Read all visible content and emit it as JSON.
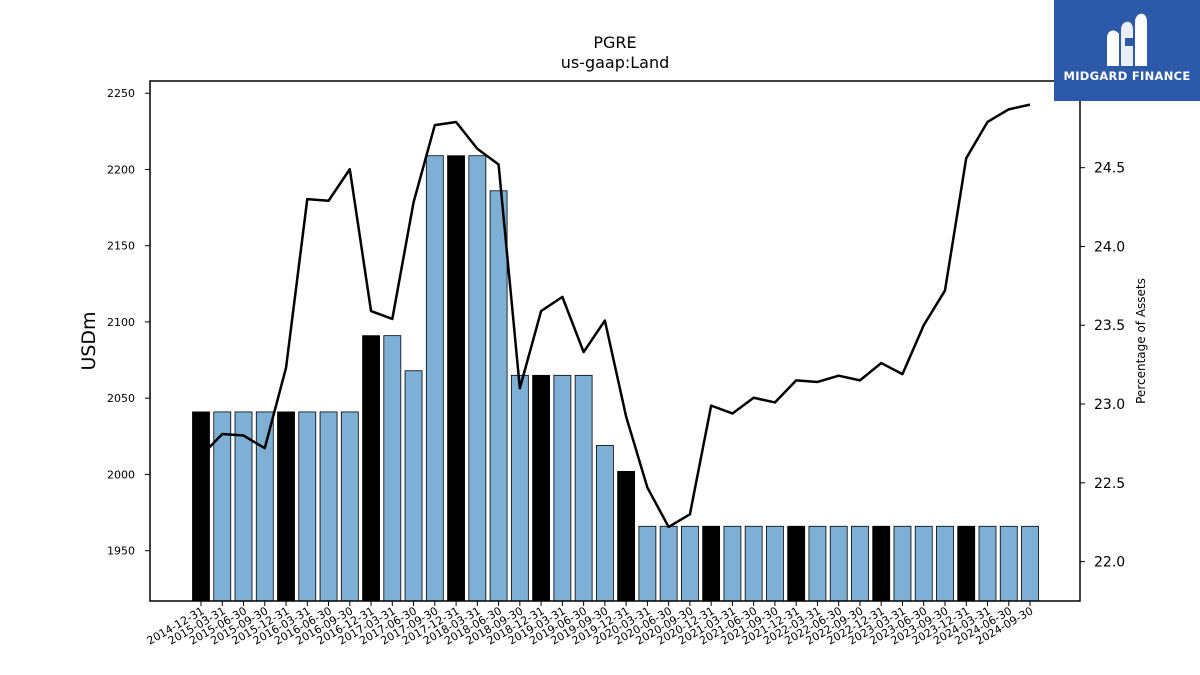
{
  "brand": {
    "name": "MIDGARD FINANCE",
    "bg": "#2d5aa8"
  },
  "chart_data": {
    "type": "bar",
    "title": "PGRE",
    "subtitle": "us-gaap:Land",
    "ylabel": "USDm",
    "y2label": "Percentage of Assets",
    "ylim": [
      1917,
      2258
    ],
    "y2lim": [
      21.75,
      25.05
    ],
    "yticks": [
      1950,
      2000,
      2050,
      2100,
      2150,
      2200,
      2250
    ],
    "y2ticks": [
      22.0,
      22.5,
      23.0,
      23.5,
      24.0,
      24.5
    ],
    "categories": [
      "2014-12-31",
      "2015-03-31",
      "2015-06-30",
      "2015-09-30",
      "2015-12-31",
      "2016-03-31",
      "2016-06-30",
      "2016-09-30",
      "2016-12-31",
      "2017-03-31",
      "2017-06-30",
      "2017-09-30",
      "2017-12-31",
      "2018-03-31",
      "2018-06-30",
      "2018-09-30",
      "2018-12-31",
      "2019-03-31",
      "2019-06-30",
      "2019-09-30",
      "2019-12-31",
      "2020-03-31",
      "2020-06-30",
      "2020-09-30",
      "2020-12-31",
      "2021-03-31",
      "2021-06-30",
      "2021-09-30",
      "2021-12-31",
      "2022-03-31",
      "2022-06-30",
      "2022-09-30",
      "2022-12-31",
      "2023-03-31",
      "2023-06-30",
      "2023-09-30",
      "2023-12-31",
      "2024-03-31",
      "2024-06-30",
      "2024-09-30"
    ],
    "series": [
      {
        "kind": "bar",
        "axis": "left",
        "values": [
          2041,
          2041,
          2041,
          2041,
          2041,
          2041,
          2041,
          2041,
          2091,
          2091,
          2068,
          2209,
          2209,
          2209,
          2186,
          2065,
          2065,
          2065,
          2065,
          2019,
          2002,
          1966,
          1966,
          1966,
          1966,
          1966,
          1966,
          1966,
          1966,
          1966,
          1966,
          1966,
          1966,
          1966,
          1966,
          1966,
          1966,
          1966,
          1966,
          1966
        ],
        "color": "#7eb0d5",
        "highlight_color": "#000000",
        "highlight_categories": [
          "2014-12-31",
          "2015-12-31",
          "2016-12-31",
          "2017-12-31",
          "2018-12-31",
          "2019-12-31",
          "2020-12-31",
          "2021-12-31",
          "2022-12-31",
          "2023-12-31"
        ]
      },
      {
        "kind": "line",
        "axis": "right",
        "values": [
          22.67,
          22.81,
          22.8,
          22.72,
          23.23,
          24.3,
          24.29,
          24.49,
          23.59,
          23.54,
          24.28,
          24.77,
          24.79,
          24.62,
          24.52,
          23.1,
          23.59,
          23.68,
          23.33,
          23.53,
          22.92,
          22.47,
          22.22,
          22.3,
          22.99,
          22.94,
          23.04,
          23.01,
          23.15,
          23.14,
          23.18,
          23.15,
          23.26,
          23.19,
          23.5,
          23.72,
          24.56,
          24.79,
          24.87,
          24.9
        ],
        "color": "#000000"
      }
    ]
  }
}
